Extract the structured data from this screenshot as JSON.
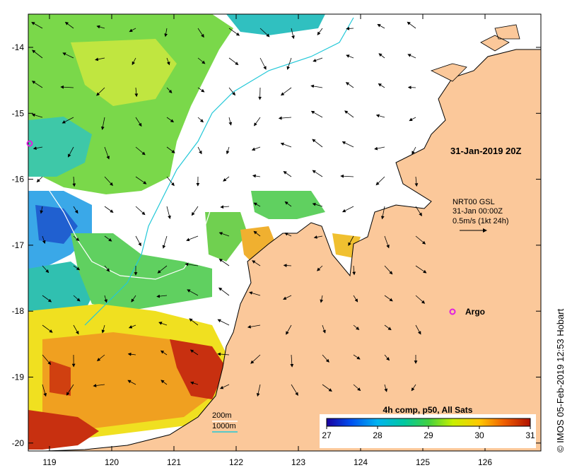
{
  "map": {
    "lon_ticks": [
      "119",
      "120",
      "121",
      "122",
      "123",
      "124",
      "125",
      "126"
    ],
    "lat_ticks": [
      "-14",
      "-15",
      "-16",
      "-17",
      "-18",
      "-19",
      "-20"
    ],
    "timestamp": "31-Jan-2019 20Z",
    "current_legend": {
      "line1": "NRT00 GSL",
      "line2": "31-Jan 00:00Z",
      "line3": "0.5m/s (1kt 24h)"
    },
    "argo_label": "Argo",
    "bathymetry": {
      "label_200": "200m",
      "label_1000": "1000m"
    },
    "credit": "© IMOS 05-Feb-2019 12:53 Hobart",
    "colorbar": {
      "title": "4h comp, p50, All Sats",
      "ticks": [
        "27",
        "28",
        "29",
        "30",
        "31"
      ]
    },
    "colors": {
      "land": "#fbc89a",
      "isobath_200": "#ffffff",
      "isobath_1000": "#22c8d8",
      "argo_marker": "#e020e0"
    }
  }
}
